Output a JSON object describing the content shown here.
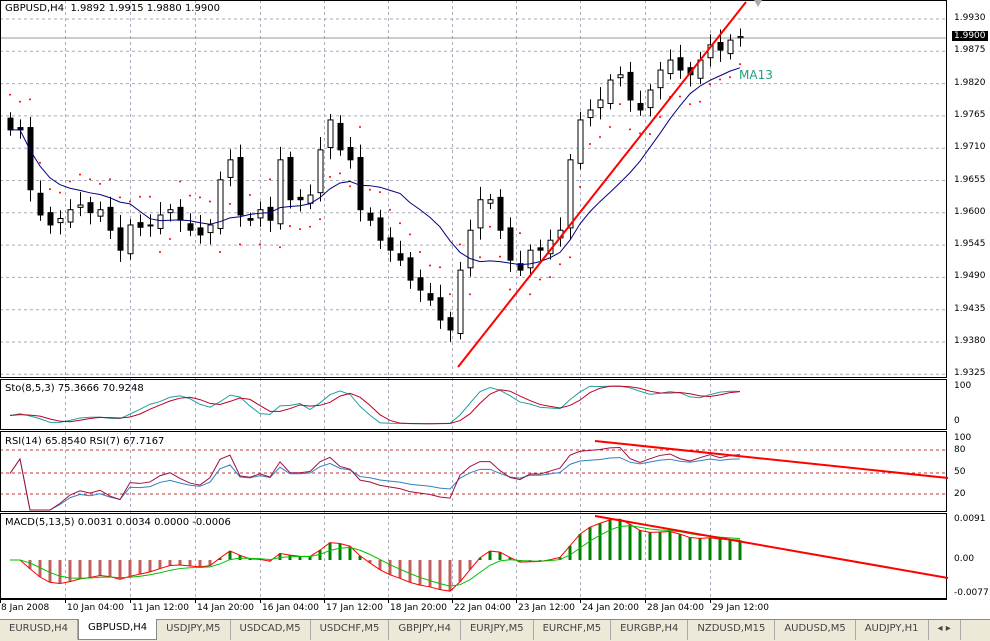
{
  "header": {
    "symbol": "GBPUSD,H4",
    "ohlc": "1.9892 1.9915 1.9880 1.9900"
  },
  "current_price": "1.9900",
  "ma_label": "MA13",
  "price_axis": [
    "1.9930",
    "1.9875",
    "1.9820",
    "1.9765",
    "1.9710",
    "1.9655",
    "1.9600",
    "1.9545",
    "1.9490",
    "1.9435",
    "1.9380",
    "1.9325"
  ],
  "stoch": {
    "label": "Sto(8,5,3) 75.3666 70.9248",
    "axis": [
      "100",
      "0"
    ]
  },
  "rsi": {
    "label": "RSI(14) 65.8540  RSI(7) 67.7167",
    "axis": [
      "100",
      "80",
      "50",
      "20"
    ]
  },
  "macd": {
    "label": "MACD(5,13,5) 0.0031 0.0034 0.0000 -0.0006",
    "axis": [
      "0.0091",
      "0.00",
      "-0.0077"
    ]
  },
  "time_axis": [
    "8 Jan 2008",
    "10 Jan 04:00",
    "11 Jan 12:00",
    "14 Jan 20:00",
    "16 Jan 04:00",
    "17 Jan 12:00",
    "18 Jan 20:00",
    "22 Jan 04:00",
    "23 Jan 12:00",
    "24 Jan 20:00",
    "28 Jan 04:00",
    "29 Jan 12:00"
  ],
  "tabs": [
    "EURUSD,H4",
    "GBPUSD,H4",
    "USDJPY,M5",
    "USDCAD,M5",
    "USDCHF,M5",
    "GBPJPY,H4",
    "EURJPY,M5",
    "EURCHF,M5",
    "EURGBP,H4",
    "NZDUSD,M15",
    "AUDUSD,M5",
    "AUDJPY,H1"
  ],
  "active_tab": 1,
  "colors": {
    "ma": "#000080",
    "sar": "#ff0000",
    "trend": "#ff0000",
    "stoch_main": "#20a0a0",
    "stoch_signal": "#c00020",
    "rsi14": "#3080c0",
    "rsi7": "#a01040",
    "macd_up": "#008000",
    "macd_down": "#c06060",
    "macd_signal": "#00c000",
    "macd_line": "#ff0000",
    "ma_label": "#20a080"
  },
  "chart_data": {
    "type": "candlestick",
    "symbol": "GBPUSD",
    "timeframe": "H4",
    "ylim": [
      1.9325,
      1.993
    ],
    "closes": [
      1.9741,
      1.9741,
      1.9639,
      1.9596,
      1.9579,
      1.959,
      1.9605,
      1.9613,
      1.96,
      1.9605,
      1.957,
      1.9536,
      1.9579,
      1.9575,
      1.9579,
      1.9596,
      1.9605,
      1.9587,
      1.957,
      1.9562,
      1.9579,
      1.9656,
      1.969,
      1.9596,
      1.9587,
      1.9605,
      1.9587,
      1.969,
      1.9622,
      1.9622,
      1.963,
      1.9707,
      1.9758,
      1.9707,
      1.969,
      1.9605,
      1.9587,
      1.9553,
      1.9536,
      1.9519,
      1.9485,
      1.9468,
      1.9451,
      1.9417,
      1.94,
      1.9502,
      1.957,
      1.9622,
      1.9622,
      1.957,
      1.9519,
      1.9502,
      1.9536,
      1.9536,
      1.9553,
      1.957,
      1.969,
      1.9758,
      1.9775,
      1.9792,
      1.9826,
      1.9835,
      1.9792,
      1.9775,
      1.9809,
      1.9843,
      1.986,
      1.9843,
      1.9835,
      1.986,
      1.9886,
      1.9877,
      1.9894,
      1.99
    ],
    "ma_period": 13
  }
}
